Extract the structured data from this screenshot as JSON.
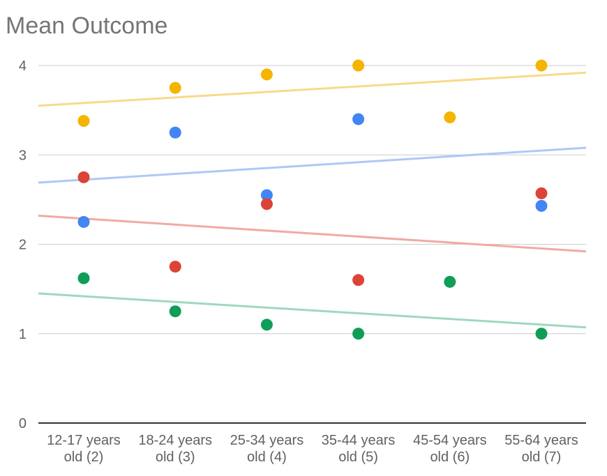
{
  "chart_data": {
    "type": "scatter",
    "title": "Mean Outcome",
    "xlabel": "",
    "ylabel": "",
    "ylim": [
      0,
      4
    ],
    "yticks": [
      "0",
      "1",
      "2",
      "3",
      "4"
    ],
    "grid": true,
    "legend": "none",
    "categories": [
      [
        "12-17 years",
        "old (2)"
      ],
      [
        "18-24 years",
        "old (3)"
      ],
      [
        "25-34 years",
        "old (4)"
      ],
      [
        "35-44 years",
        "old (5)"
      ],
      [
        "45-54 years",
        "old (6)"
      ],
      [
        "55-64 years",
        "old (7)"
      ]
    ],
    "series": [
      {
        "color": "#f4b400",
        "trendColor": "#f9d98a",
        "values": [
          3.38,
          3.75,
          3.9,
          4.0,
          3.42,
          4.0
        ],
        "trendline": [
          3.55,
          3.92
        ]
      },
      {
        "color": "#4285f4",
        "trendColor": "#aec8f7",
        "values": [
          2.25,
          3.25,
          2.55,
          3.4,
          null,
          2.43
        ],
        "trendline": [
          2.69,
          3.08
        ]
      },
      {
        "color": "#db4437",
        "trendColor": "#f0aaa4",
        "values": [
          2.75,
          1.75,
          2.45,
          1.6,
          null,
          2.57
        ],
        "trendline": [
          2.32,
          1.92
        ]
      },
      {
        "color": "#0f9d58",
        "trendColor": "#9fd8bd",
        "values": [
          1.62,
          1.25,
          1.1,
          1.0,
          1.58,
          1.0
        ],
        "trendline": [
          1.45,
          1.07
        ]
      }
    ]
  }
}
